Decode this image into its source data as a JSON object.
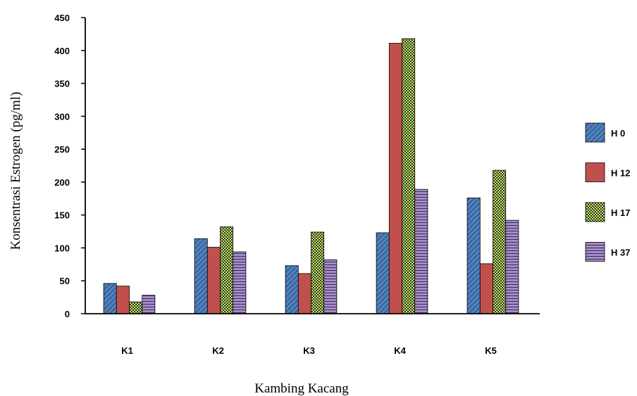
{
  "chart_data": {
    "type": "bar",
    "title": "",
    "xlabel": "Kambing Kacang",
    "ylabel": "Konsentrasi Estrogen (pg/ml)",
    "ylim": [
      0,
      450
    ],
    "yticks": [
      0,
      50,
      100,
      150,
      200,
      250,
      300,
      350,
      400,
      450
    ],
    "categories": [
      "K1",
      "K2",
      "K3",
      "K4",
      "K5"
    ],
    "grid": false,
    "legend_position": "right",
    "series": [
      {
        "name": "H 0",
        "values": [
          46,
          114,
          73,
          123,
          176
        ],
        "color": "#4f81bd",
        "pattern": "diagonal-stripes"
      },
      {
        "name": "H 12",
        "values": [
          42,
          101,
          61,
          411,
          76
        ],
        "color": "#c0504d",
        "pattern": "solid"
      },
      {
        "name": "H 17",
        "values": [
          18,
          132,
          124,
          418,
          218
        ],
        "color": "#9bbb59",
        "pattern": "checker"
      },
      {
        "name": "H 37",
        "values": [
          28,
          94,
          82,
          189,
          142
        ],
        "color": "#8064a2",
        "pattern": "horizontal-stripes"
      }
    ]
  }
}
